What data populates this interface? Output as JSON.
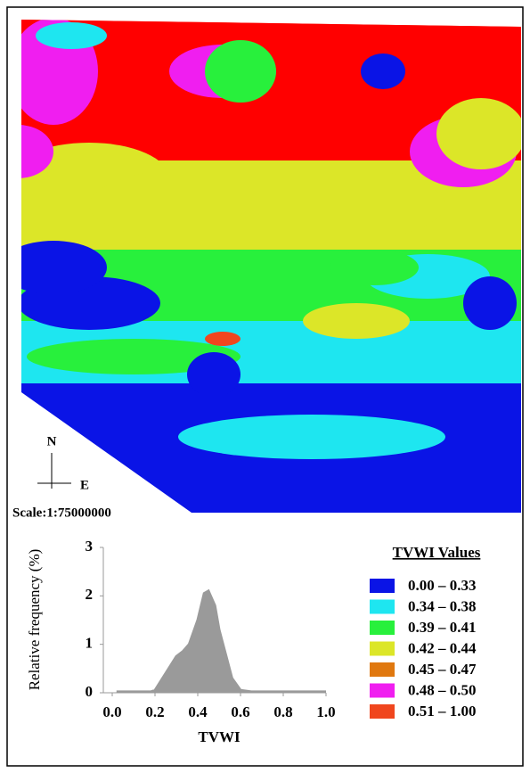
{
  "map": {
    "north": "N",
    "east": "E",
    "scale": "Scale:1:75000000",
    "legend": {
      "title": "TVWI Values",
      "items": [
        {
          "label": "0.00 – 0.33",
          "color": "#0a14e6"
        },
        {
          "label": "0.34 – 0.38",
          "color": "#1ee6f0"
        },
        {
          "label": "0.39 – 0.41",
          "color": "#28f03c"
        },
        {
          "label": "0.42 – 0.44",
          "color": "#dce628"
        },
        {
          "label": "0.45 – 0.47",
          "color": "#e0780f"
        },
        {
          "label": "0.48 – 0.50",
          "color": "#f01ef0"
        },
        {
          "label": "0.51 – 1.00",
          "color": "#f0461e"
        }
      ]
    }
  },
  "chart_data": {
    "type": "area",
    "x": [
      0.02,
      0.1,
      0.18,
      0.2,
      0.25,
      0.3,
      0.33,
      0.36,
      0.4,
      0.43,
      0.45,
      0.48,
      0.5,
      0.53,
      0.56,
      0.6,
      0.65,
      0.75,
      1.0
    ],
    "series": [
      {
        "name": "TVWI",
        "color": "#9a9a9a",
        "values": [
          0.02,
          0.02,
          0.02,
          0.05,
          0.4,
          0.75,
          0.85,
          1.0,
          1.5,
          2.05,
          2.1,
          1.8,
          1.3,
          0.8,
          0.3,
          0.05,
          0.02,
          0.02,
          0.02
        ]
      }
    ],
    "xlabel": "TVWI",
    "ylabel": "Relative frequency (%)",
    "xlim": [
      0,
      1
    ],
    "ylim": [
      0,
      3
    ],
    "xticks": [
      {
        "value": 0,
        "label": "0.0"
      },
      {
        "value": 0.2,
        "label": "0.2"
      },
      {
        "value": 0.4,
        "label": "0.4"
      },
      {
        "value": 0.6,
        "label": "0.6"
      },
      {
        "value": 0.8,
        "label": "0.8"
      },
      {
        "value": 1,
        "label": "1.0"
      }
    ],
    "yticks": [
      0,
      1,
      2,
      3
    ]
  }
}
